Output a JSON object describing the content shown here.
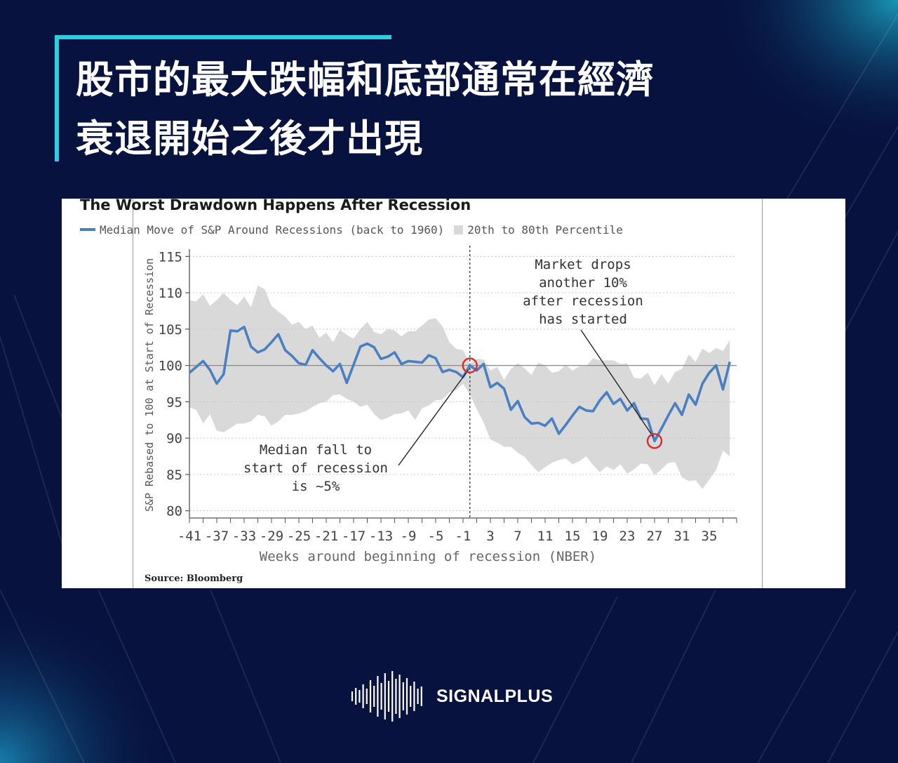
{
  "headline": {
    "line1": "股市的最大跌幅和底部通常在經濟",
    "line2": "衰退開始之後才出現"
  },
  "chart_data": {
    "type": "line",
    "title": "The Worst Drawdown Happens After Recession",
    "legend": {
      "line": "Median Move of S&P Around Recessions (back to 1960)",
      "band": "20th to 80th Percentile"
    },
    "xlabel": "Weeks around beginning of recession (NBER)",
    "ylabel": "S&P Rebased to 100 at Start of Recession",
    "xlim": [
      -41,
      39
    ],
    "ylim": [
      79,
      116
    ],
    "yticks": [
      80,
      85,
      90,
      95,
      100,
      105,
      110,
      115
    ],
    "xtick_labels": [
      "-41",
      "-37",
      "-33",
      "-29",
      "-25",
      "-21",
      "-17",
      "-13",
      "-9",
      "-5",
      "-1",
      "3",
      "7",
      "11",
      "15",
      "19",
      "23",
      "27",
      "31",
      "35"
    ],
    "recession_start_week": 0,
    "reference_level": 100,
    "series": [
      {
        "values": [
          [
            -41,
            99
          ],
          [
            -40,
            99.8
          ],
          [
            -39,
            100.6
          ],
          [
            -38,
            99.4
          ],
          [
            -37,
            97.5
          ],
          [
            -36,
            98.8
          ],
          [
            -35,
            104.8
          ],
          [
            -34,
            104.7
          ],
          [
            -33,
            105.3
          ],
          [
            -32,
            102.6
          ],
          [
            -31,
            101.8
          ],
          [
            -30,
            102.2
          ],
          [
            -29,
            103.2
          ],
          [
            -28,
            104.3
          ],
          [
            -27,
            102.1
          ],
          [
            -26,
            101.3
          ],
          [
            -25,
            100.3
          ],
          [
            -24,
            100.1
          ],
          [
            -23,
            102.1
          ],
          [
            -22,
            101
          ],
          [
            -21,
            100
          ],
          [
            -20,
            99.2
          ],
          [
            -19,
            100.2
          ],
          [
            -18,
            97.6
          ],
          [
            -17,
            100.1
          ],
          [
            -16,
            102.6
          ],
          [
            -15,
            103
          ],
          [
            -14,
            102.5
          ],
          [
            -13,
            100.9
          ],
          [
            -12,
            101.2
          ],
          [
            -11,
            101.8
          ],
          [
            -10,
            100.2
          ],
          [
            -9,
            100.6
          ],
          [
            -8,
            100.5
          ],
          [
            -7,
            100.4
          ],
          [
            -6,
            101.4
          ],
          [
            -5,
            101
          ],
          [
            -4,
            99.1
          ],
          [
            -3,
            99.4
          ],
          [
            -2,
            99.1
          ],
          [
            -1,
            98.4
          ],
          [
            0,
            100
          ],
          [
            1,
            99.3
          ],
          [
            2,
            100.2
          ],
          [
            3,
            97
          ],
          [
            4,
            97.6
          ],
          [
            5,
            96.8
          ],
          [
            6,
            93.9
          ],
          [
            7,
            95.1
          ],
          [
            8,
            92.9
          ],
          [
            9,
            92
          ],
          [
            10,
            92.1
          ],
          [
            11,
            91.7
          ],
          [
            12,
            92.7
          ],
          [
            13,
            90.6
          ],
          [
            14,
            91.8
          ],
          [
            15,
            93.1
          ],
          [
            16,
            94.3
          ],
          [
            17,
            93.8
          ],
          [
            18,
            93.7
          ],
          [
            19,
            95.2
          ],
          [
            20,
            96.3
          ],
          [
            21,
            94.7
          ],
          [
            22,
            95.4
          ],
          [
            23,
            93.8
          ],
          [
            24,
            94.8
          ],
          [
            25,
            92.7
          ],
          [
            26,
            92.6
          ],
          [
            27,
            89.6
          ],
          [
            28,
            91.3
          ],
          [
            29,
            93.1
          ],
          [
            30,
            94.8
          ],
          [
            31,
            93.2
          ],
          [
            32,
            96
          ],
          [
            33,
            94.6
          ],
          [
            34,
            97.5
          ],
          [
            35,
            99
          ],
          [
            36,
            100
          ],
          [
            37,
            96.7
          ],
          [
            38,
            100.5
          ]
        ]
      }
    ],
    "band": {
      "x": [
        -41,
        -40,
        -39,
        -38,
        -37,
        -36,
        -35,
        -34,
        -33,
        -32,
        -31,
        -30,
        -29,
        -28,
        -27,
        -26,
        -25,
        -24,
        -23,
        -22,
        -21,
        -20,
        -19,
        -18,
        -17,
        -16,
        -15,
        -14,
        -13,
        -12,
        -11,
        -10,
        -9,
        -8,
        -7,
        -6,
        -5,
        -4,
        -3,
        -2,
        -1,
        0,
        1,
        2,
        3,
        4,
        5,
        6,
        7,
        8,
        9,
        10,
        11,
        12,
        13,
        14,
        15,
        16,
        17,
        18,
        19,
        20,
        21,
        22,
        23,
        24,
        25,
        26,
        27,
        28,
        29,
        30,
        31,
        32,
        33,
        34,
        35,
        36,
        37,
        38
      ],
      "upper": [
        109,
        108.8,
        109.8,
        108.2,
        109,
        110,
        109,
        108.3,
        109.5,
        108,
        111,
        110.5,
        108.2,
        107.4,
        106.7,
        105.6,
        106,
        105,
        105.5,
        103.8,
        104.5,
        103.2,
        104.9,
        104.2,
        103.7,
        105,
        106,
        104.6,
        104.3,
        105,
        104.8,
        104,
        104.7,
        104.7,
        105.5,
        106.3,
        106.5,
        105.4,
        103.2,
        102.3,
        102.1,
        100.2,
        100.9,
        100.8,
        99.3,
        99.8,
        98,
        99.5,
        100.3,
        99.6,
        98.7,
        100.4,
        100,
        99,
        99.2,
        100.1,
        99.3,
        99.9,
        99.9,
        101,
        100.7,
        100.7,
        100.7,
        100.2,
        100.3,
        98.3,
        98.2,
        99,
        97.3,
        98.8,
        97.5,
        99.1,
        99.5,
        101.5,
        100.5,
        102.3,
        101.7,
        102.4,
        102,
        103.5
      ],
      "lower": [
        94.2,
        93.9,
        92,
        93.3,
        91,
        90.8,
        91.4,
        92,
        92,
        92.3,
        93.2,
        93,
        91.7,
        92.3,
        93.2,
        93.2,
        93.4,
        93.7,
        94.3,
        94.8,
        95,
        95.9,
        96,
        95.4,
        95,
        94.3,
        94.6,
        93.3,
        92.5,
        92.8,
        93.3,
        93.4,
        93.8,
        92.5,
        94.1,
        94.5,
        95.2,
        95.3,
        96.3,
        96.6,
        97.5,
        96,
        94,
        92.2,
        89.8,
        89.4,
        88.8,
        88.8,
        88,
        87.4,
        86.3,
        85.3,
        86,
        86.6,
        87,
        87.2,
        86.4,
        86.8,
        87.5,
        86.3,
        85.3,
        86.1,
        85.6,
        86.4,
        85.1,
        85.7,
        86.5,
        86.4,
        84.9,
        85.7,
        86.6,
        86.7,
        84.6,
        84.1,
        84.2,
        83,
        84.3,
        85.6,
        88.3,
        87.5
      ]
    },
    "annotations": [
      {
        "text_lines": [
          "Median fall to",
          "start of recession",
          "is ~5%"
        ],
        "x": 0,
        "y": 100
      },
      {
        "text_lines": [
          "Market drops",
          "another 10%",
          "after recession",
          "has started"
        ],
        "x": 27,
        "y": 89.6
      }
    ],
    "source": "Source: Bloomberg"
  },
  "brand": {
    "name": "SIGNALPLUS"
  },
  "colors": {
    "background": "#07123f",
    "accent": "#2ad0e0",
    "line": "#4a7fc1",
    "band": "#d9d9d9",
    "marker": "#d92b2b"
  }
}
